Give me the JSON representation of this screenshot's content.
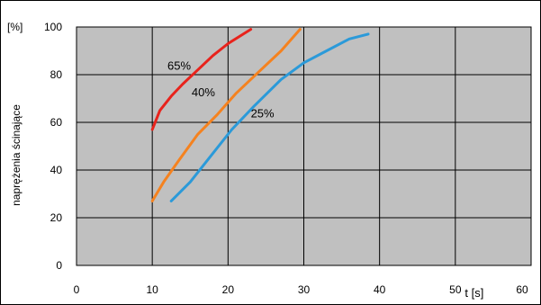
{
  "chart_data": {
    "type": "line",
    "title": "",
    "xlabel": "t [s]",
    "ylabel": "naprężenia ścinające",
    "yunit": "[%]",
    "xlim": [
      0,
      60
    ],
    "ylim": [
      0,
      100
    ],
    "xticks": [
      0,
      10,
      20,
      30,
      40,
      50,
      60
    ],
    "yticks": [
      0,
      20,
      40,
      60,
      80,
      100
    ],
    "grid": true,
    "plot_background": "#c0c0c0",
    "series": [
      {
        "name": "65%",
        "color": "#e8231c",
        "x": [
          10.0,
          11.0,
          12.5,
          14.0,
          16.0,
          18.0,
          20.0,
          22.0,
          23.0
        ],
        "y": [
          57,
          65,
          71,
          76,
          82,
          88,
          93,
          97,
          99
        ]
      },
      {
        "name": "40%",
        "color": "#f5821f",
        "x": [
          10.0,
          11.5,
          13.5,
          16.0,
          18.5,
          21.0,
          24.0,
          27.0,
          29.5
        ],
        "y": [
          27,
          35,
          44,
          55,
          63,
          72,
          81,
          90,
          99
        ]
      },
      {
        "name": "25%",
        "color": "#2b9ad9",
        "x": [
          12.5,
          15.0,
          18.0,
          20.5,
          23.5,
          27.0,
          30.0,
          33.0,
          36.0,
          38.5
        ],
        "y": [
          27,
          35,
          47,
          57,
          67,
          78,
          85,
          90,
          95,
          97
        ]
      }
    ],
    "annotations": [
      {
        "text": "65%",
        "x": 12.0,
        "y": 82
      },
      {
        "text": "40%",
        "x": 15.2,
        "y": 71
      },
      {
        "text": "25%",
        "x": 23.0,
        "y": 62
      }
    ]
  }
}
